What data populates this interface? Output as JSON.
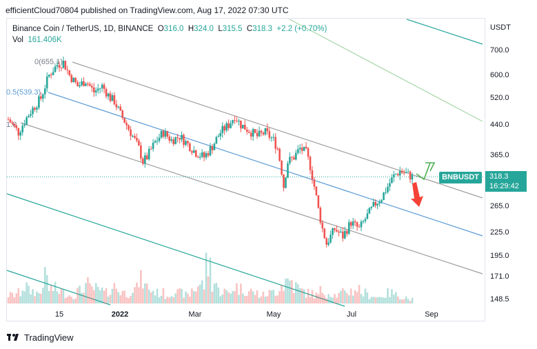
{
  "header": {
    "text": "efficientCloud70804 published on TradingView.com, Aug 17, 2022 07:30 UTC"
  },
  "legend": {
    "symbol": "Binance Coin / TetherUS, 1D, BINANCE",
    "o_label": "O",
    "o": "316.0",
    "h_label": "H",
    "h": "324.0",
    "l_label": "L",
    "l": "315.5",
    "c_label": "C",
    "c": "318.3",
    "change": "+2.2 (+0.70%)",
    "vol_label": "Vol",
    "vol": "161.406K"
  },
  "currency": "USDT",
  "symbol_tag": "BNBUSDT",
  "price_tag": {
    "price": "318.3",
    "countdown": "16:29:42"
  },
  "fib_labels": {
    "top": "0(655.1)",
    "mid": "0.5(539.3)",
    "left": "1.0"
  },
  "footer": {
    "brand": "TradingView",
    "logo": "tradingview-logo"
  },
  "colors": {
    "up": "#26a69a",
    "down": "#ef5350",
    "grid_line": "#9e9e9e",
    "mid_line": "#5b9bd5",
    "outer_green": "#26a69a",
    "light_green": "#81c784"
  },
  "chart_data": {
    "type": "candlestick",
    "title": "Binance Coin / TetherUS, 1D, BINANCE",
    "y_axis": {
      "labels": [
        "700.0",
        "600.0",
        "520.0",
        "440.0",
        "365.0",
        "265.0",
        "225.0",
        "195.0",
        "171.0",
        "148.5"
      ],
      "values": [
        700,
        600,
        520,
        440,
        365,
        265,
        225,
        195,
        171,
        148.5
      ],
      "scale": "log"
    },
    "x_axis": {
      "labels": [
        {
          "text": "15",
          "bold": false
        },
        {
          "text": "2022",
          "bold": true
        },
        {
          "text": "Mar",
          "bold": false
        },
        {
          "text": "May",
          "bold": false
        },
        {
          "text": "Jul",
          "bold": false
        },
        {
          "text": "Sep",
          "bold": false
        }
      ]
    },
    "last": {
      "open": 316.0,
      "high": 324.0,
      "low": 315.5,
      "close": 318.3
    },
    "close_path": [
      [
        0,
        455
      ],
      [
        5,
        420
      ],
      [
        10,
        470
      ],
      [
        16,
        520
      ],
      [
        20,
        600
      ],
      [
        24,
        640
      ],
      [
        27,
        650
      ],
      [
        30,
        600
      ],
      [
        34,
        560
      ],
      [
        38,
        580
      ],
      [
        42,
        540
      ],
      [
        46,
        560
      ],
      [
        50,
        520
      ],
      [
        52,
        510
      ],
      [
        55,
        470
      ],
      [
        58,
        440
      ],
      [
        62,
        400
      ],
      [
        64,
        380
      ],
      [
        66,
        350
      ],
      [
        68,
        360
      ],
      [
        72,
        395
      ],
      [
        76,
        420
      ],
      [
        80,
        400
      ],
      [
        84,
        410
      ],
      [
        88,
        390
      ],
      [
        92,
        370
      ],
      [
        96,
        360
      ],
      [
        100,
        385
      ],
      [
        104,
        420
      ],
      [
        108,
        440
      ],
      [
        111,
        465
      ],
      [
        114,
        440
      ],
      [
        118,
        425
      ],
      [
        122,
        410
      ],
      [
        126,
        420
      ],
      [
        130,
        400
      ],
      [
        132,
        380
      ],
      [
        134,
        330
      ],
      [
        135,
        300
      ],
      [
        137,
        350
      ],
      [
        140,
        360
      ],
      [
        143,
        380
      ],
      [
        146,
        370
      ],
      [
        148,
        340
      ],
      [
        150,
        300
      ],
      [
        152,
        260
      ],
      [
        154,
        230
      ],
      [
        156,
        210
      ],
      [
        160,
        230
      ],
      [
        164,
        220
      ],
      [
        168,
        240
      ],
      [
        172,
        230
      ],
      [
        176,
        250
      ],
      [
        180,
        270
      ],
      [
        183,
        280
      ],
      [
        186,
        300
      ],
      [
        189,
        320
      ],
      [
        192,
        330
      ],
      [
        195,
        325
      ],
      [
        198,
        318
      ]
    ],
    "volume_note": "volume histogram bars along bottom",
    "volume_hint": [
      20,
      25,
      40,
      30,
      25,
      60,
      35,
      30,
      25,
      20,
      30,
      45,
      35,
      30,
      25,
      40,
      30,
      25,
      35,
      55,
      40,
      30,
      25,
      20,
      30,
      25,
      20,
      35,
      45,
      90,
      50,
      30,
      25,
      40,
      35,
      30,
      25,
      20,
      25,
      30,
      45,
      55,
      40,
      30,
      25,
      20,
      30,
      25,
      20,
      25,
      30,
      35,
      25,
      20,
      15,
      20,
      25,
      20,
      15,
      10
    ],
    "annotations": [
      "parallel channel",
      "fib retracement",
      "green arrow up",
      "red arrow down"
    ]
  }
}
